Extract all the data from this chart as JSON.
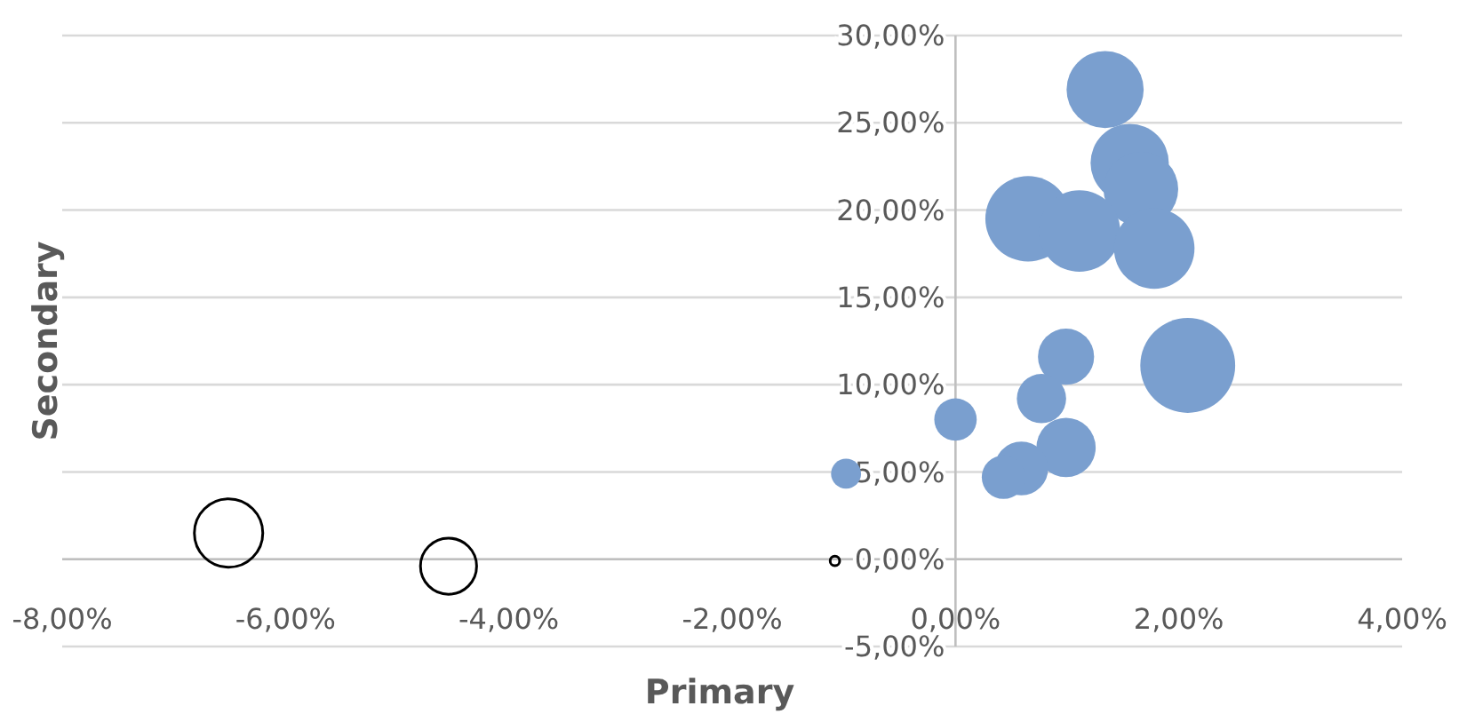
{
  "chart_data": {
    "type": "bubble",
    "xlabel": "Primary",
    "ylabel": "Secondary",
    "x": [
      1.34,
      1.56,
      1.66,
      0.65,
      1.11,
      1.78,
      2.08,
      0.99,
      0.77,
      0,
      0.99,
      0.59,
      0.43,
      -0.98,
      -1.08,
      -6.51,
      -4.54
    ],
    "values": [
      26.9,
      22.7,
      21.2,
      19.5,
      18.8,
      17.8,
      11.1,
      11.6,
      9.2,
      8.0,
      6.4,
      5.2,
      4.7,
      4.9,
      -0.1,
      1.5,
      -0.4
    ],
    "sizes": [
      0.66,
      0.68,
      0.62,
      0.81,
      0.74,
      0.72,
      1,
      0.35,
      0.27,
      0.2,
      0.39,
      0.32,
      0.21,
      0.1,
      0.01,
      0.52,
      0.35
    ],
    "colors": [
      "#7a9fcf",
      "#7a9fcf",
      "#7a9fcf",
      "#7a9fcf",
      "#7a9fcf",
      "#7a9fcf",
      "#7a9fcf",
      "#7a9fcf",
      "#7a9fcf",
      "#7a9fcf",
      "#7a9fcf",
      "#7a9fcf",
      "#7a9fcf",
      "#7a9fcf",
      "#000000",
      "#000000",
      "#000000"
    ],
    "xlim": [
      -8,
      4
    ],
    "xticks": [
      {
        "value": -8,
        "label": "-8,00%"
      },
      {
        "value": -6,
        "label": "-6,00%"
      },
      {
        "value": -4,
        "label": "-4,00%"
      },
      {
        "value": -2,
        "label": "-2,00%"
      },
      {
        "value": 0,
        "label": "0,00%"
      },
      {
        "value": 2,
        "label": "2,00%"
      },
      {
        "value": 4,
        "label": "4,00%"
      }
    ],
    "ylim": [
      -5,
      30
    ],
    "yticks": [
      {
        "value": -5,
        "label": "-5,00%"
      },
      {
        "value": 0,
        "label": "0,00%"
      },
      {
        "value": 5,
        "label": "5,00%"
      },
      {
        "value": 10,
        "label": "10,00%"
      },
      {
        "value": 15,
        "label": "15,00%"
      },
      {
        "value": 20,
        "label": "20,00%"
      },
      {
        "value": 25,
        "label": "25,00%"
      },
      {
        "value": 30,
        "label": "30,00%"
      }
    ],
    "grid": "y"
  }
}
